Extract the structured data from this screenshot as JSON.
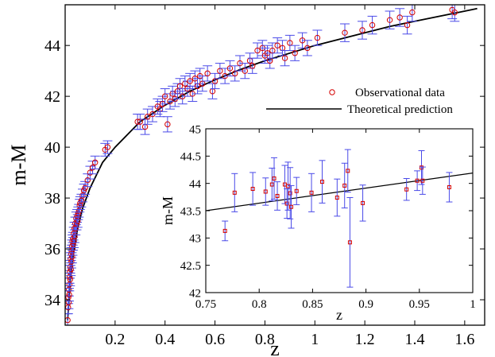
{
  "colors": {
    "marker": "#d40000",
    "errorbar": "#4a4ae8",
    "curve": "#000000",
    "frame": "#000000"
  },
  "chart_data": [
    {
      "type": "scatter",
      "title": "",
      "xlabel": "z",
      "ylabel": "m-M",
      "xlim": [
        0,
        1.68
      ],
      "ylim": [
        33,
        45.6
      ],
      "xticks": [
        "0.2",
        "0.4",
        "0.6",
        "0.8",
        "1",
        "1.2",
        "1.4",
        "1.6"
      ],
      "xtick_values": [
        0.2,
        0.4,
        0.6,
        0.8,
        1.0,
        1.2,
        1.4,
        1.6
      ],
      "yticks": [
        "34",
        "36",
        "38",
        "40",
        "42",
        "44"
      ],
      "ytick_values": [
        34,
        36,
        38,
        40,
        42,
        44
      ],
      "grid": false,
      "legend_position": "right",
      "legend": [
        {
          "name": "Observational data",
          "marker": "circle"
        },
        {
          "name": "Theoretical prediction",
          "marker": "line"
        }
      ],
      "series": [
        {
          "name": "Observational data",
          "points": [
            [
              0.01,
              33.2,
              0.25
            ],
            [
              0.012,
              33.7,
              0.25
            ],
            [
              0.013,
              34.1,
              0.25
            ],
            [
              0.014,
              33.9,
              0.25
            ],
            [
              0.015,
              34.4,
              0.25
            ],
            [
              0.016,
              34.2,
              0.25
            ],
            [
              0.017,
              34.6,
              0.25
            ],
            [
              0.018,
              34.9,
              0.25
            ],
            [
              0.019,
              35.1,
              0.25
            ],
            [
              0.02,
              34.8,
              0.25
            ],
            [
              0.021,
              35.3,
              0.25
            ],
            [
              0.022,
              35.6,
              0.25
            ],
            [
              0.023,
              35.2,
              0.25
            ],
            [
              0.024,
              35.8,
              0.25
            ],
            [
              0.025,
              35.5,
              0.25
            ],
            [
              0.026,
              35.9,
              0.25
            ],
            [
              0.027,
              36.1,
              0.25
            ],
            [
              0.028,
              35.7,
              0.25
            ],
            [
              0.029,
              36.3,
              0.25
            ],
            [
              0.03,
              36.0,
              0.25
            ],
            [
              0.031,
              36.4,
              0.25
            ],
            [
              0.032,
              36.2,
              0.25
            ],
            [
              0.034,
              36.6,
              0.25
            ],
            [
              0.035,
              36.3,
              0.25
            ],
            [
              0.037,
              36.8,
              0.25
            ],
            [
              0.038,
              36.5,
              0.25
            ],
            [
              0.04,
              37.0,
              0.25
            ],
            [
              0.042,
              36.8,
              0.25
            ],
            [
              0.044,
              37.2,
              0.25
            ],
            [
              0.046,
              37.0,
              0.25
            ],
            [
              0.048,
              37.3,
              0.25
            ],
            [
              0.05,
              37.1,
              0.25
            ],
            [
              0.052,
              37.4,
              0.25
            ],
            [
              0.055,
              37.5,
              0.25
            ],
            [
              0.058,
              37.7,
              0.25
            ],
            [
              0.06,
              37.8,
              0.25
            ],
            [
              0.065,
              37.9,
              0.25
            ],
            [
              0.07,
              38.1,
              0.25
            ],
            [
              0.075,
              38.3,
              0.25
            ],
            [
              0.08,
              38.4,
              0.25
            ],
            [
              0.09,
              38.7,
              0.25
            ],
            [
              0.1,
              39.0,
              0.25
            ],
            [
              0.11,
              39.2,
              0.25
            ],
            [
              0.12,
              39.4,
              0.25
            ],
            [
              0.16,
              39.9,
              0.25
            ],
            [
              0.17,
              40.0,
              0.25
            ],
            [
              0.29,
              41.0,
              0.3
            ],
            [
              0.3,
              41.0,
              0.3
            ],
            [
              0.32,
              40.8,
              0.3
            ],
            [
              0.33,
              41.2,
              0.3
            ],
            [
              0.35,
              41.3,
              0.3
            ],
            [
              0.37,
              41.6,
              0.3
            ],
            [
              0.38,
              41.5,
              0.3
            ],
            [
              0.39,
              41.7,
              0.3
            ],
            [
              0.4,
              42.0,
              0.3
            ],
            [
              0.41,
              40.9,
              0.3
            ],
            [
              0.42,
              41.8,
              0.3
            ],
            [
              0.43,
              42.1,
              0.3
            ],
            [
              0.44,
              41.9,
              0.3
            ],
            [
              0.45,
              42.2,
              0.3
            ],
            [
              0.46,
              42.4,
              0.3
            ],
            [
              0.47,
              42.0,
              0.3
            ],
            [
              0.48,
              42.5,
              0.3
            ],
            [
              0.49,
              42.3,
              0.3
            ],
            [
              0.5,
              42.6,
              0.3
            ],
            [
              0.51,
              42.1,
              0.3
            ],
            [
              0.52,
              42.7,
              0.3
            ],
            [
              0.53,
              42.4,
              0.3
            ],
            [
              0.54,
              42.8,
              0.3
            ],
            [
              0.55,
              42.5,
              0.3
            ],
            [
              0.57,
              42.9,
              0.3
            ],
            [
              0.59,
              42.2,
              0.3
            ],
            [
              0.6,
              42.6,
              0.3
            ],
            [
              0.62,
              43.0,
              0.3
            ],
            [
              0.64,
              42.8,
              0.3
            ],
            [
              0.66,
              43.1,
              0.3
            ],
            [
              0.68,
              42.9,
              0.3
            ],
            [
              0.7,
              43.3,
              0.3
            ],
            [
              0.72,
              43.0,
              0.3
            ],
            [
              0.74,
              43.4,
              0.3
            ],
            [
              0.75,
              43.2,
              0.3
            ],
            [
              0.77,
              43.8,
              0.3
            ],
            [
              0.79,
              43.9,
              0.3
            ],
            [
              0.8,
              43.6,
              0.3
            ],
            [
              0.81,
              43.7,
              0.3
            ],
            [
              0.82,
              43.4,
              0.3
            ],
            [
              0.83,
              43.8,
              0.3
            ],
            [
              0.85,
              44.0,
              0.3
            ],
            [
              0.87,
              43.9,
              0.3
            ],
            [
              0.88,
              43.5,
              0.3
            ],
            [
              0.9,
              44.1,
              0.3
            ],
            [
              0.92,
              43.7,
              0.3
            ],
            [
              0.95,
              44.2,
              0.3
            ],
            [
              0.97,
              43.9,
              0.3
            ],
            [
              1.01,
              44.3,
              0.3
            ],
            [
              1.12,
              44.5,
              0.35
            ],
            [
              1.19,
              44.6,
              0.35
            ],
            [
              1.23,
              44.8,
              0.35
            ],
            [
              1.3,
              45.0,
              0.35
            ],
            [
              1.34,
              45.1,
              0.35
            ],
            [
              1.37,
              44.8,
              0.35
            ],
            [
              1.39,
              45.3,
              0.35
            ],
            [
              1.55,
              45.4,
              0.35
            ],
            [
              1.56,
              45.3,
              0.35
            ]
          ]
        },
        {
          "name": "Theoretical prediction",
          "curve": [
            [
              0.01,
              33.2
            ],
            [
              0.02,
              34.7
            ],
            [
              0.03,
              35.6
            ],
            [
              0.05,
              36.8
            ],
            [
              0.07,
              37.6
            ],
            [
              0.1,
              38.4
            ],
            [
              0.15,
              39.4
            ],
            [
              0.2,
              40.0
            ],
            [
              0.3,
              41.0
            ],
            [
              0.4,
              41.65
            ],
            [
              0.5,
              42.2
            ],
            [
              0.6,
              42.65
            ],
            [
              0.7,
              43.05
            ],
            [
              0.8,
              43.4
            ],
            [
              0.9,
              43.7
            ],
            [
              1.0,
              44.0
            ],
            [
              1.1,
              44.25
            ],
            [
              1.2,
              44.5
            ],
            [
              1.3,
              44.75
            ],
            [
              1.4,
              44.95
            ],
            [
              1.5,
              45.15
            ],
            [
              1.6,
              45.35
            ],
            [
              1.65,
              45.45
            ]
          ]
        }
      ]
    },
    {
      "type": "scatter",
      "title": "",
      "xlabel": "z",
      "ylabel": "m-M",
      "xlim": [
        0.75,
        1.0
      ],
      "ylim": [
        42.0,
        45.0
      ],
      "xticks": [
        "0.75",
        "0.8",
        "0.85",
        "0.9",
        "0.95",
        "1"
      ],
      "xtick_values": [
        0.75,
        0.8,
        0.85,
        0.9,
        0.95,
        1.0
      ],
      "yticks": [
        "42",
        "42.5",
        "43",
        "43.5",
        "44",
        "44.5",
        "45"
      ],
      "ytick_values": [
        42.0,
        42.5,
        43.0,
        43.5,
        44.0,
        44.5,
        45.0
      ],
      "grid": false,
      "series": [
        {
          "name": "Observational data",
          "points": [
            [
              0.768,
              43.13,
              0.18
            ],
            [
              0.777,
              43.83,
              0.35
            ],
            [
              0.794,
              43.9,
              0.3
            ],
            [
              0.806,
              43.85,
              0.25
            ],
            [
              0.812,
              43.98,
              0.3
            ],
            [
              0.814,
              44.09,
              0.38
            ],
            [
              0.817,
              43.77,
              0.26
            ],
            [
              0.824,
              43.98,
              0.35
            ],
            [
              0.826,
              43.63,
              0.27
            ],
            [
              0.827,
              43.95,
              0.44
            ],
            [
              0.829,
              43.82,
              0.47
            ],
            [
              0.83,
              43.57,
              0.39
            ],
            [
              0.835,
              43.86,
              0.25
            ],
            [
              0.849,
              43.83,
              0.35
            ],
            [
              0.859,
              44.03,
              0.39
            ],
            [
              0.873,
              43.74,
              0.34
            ],
            [
              0.88,
              43.96,
              0.41
            ],
            [
              0.883,
              44.23,
              0.39
            ],
            [
              0.885,
              42.92,
              0.82
            ],
            [
              0.897,
              43.64,
              0.33
            ],
            [
              0.938,
              43.89,
              0.2
            ],
            [
              0.948,
              44.05,
              0.18
            ],
            [
              0.952,
              44.29,
              0.31
            ],
            [
              0.953,
              44.05,
              0.25
            ],
            [
              0.978,
              43.93,
              0.27
            ]
          ]
        },
        {
          "name": "Theoretical prediction",
          "curve": [
            [
              0.75,
              43.5
            ],
            [
              1.0,
              44.19
            ]
          ]
        }
      ]
    }
  ]
}
